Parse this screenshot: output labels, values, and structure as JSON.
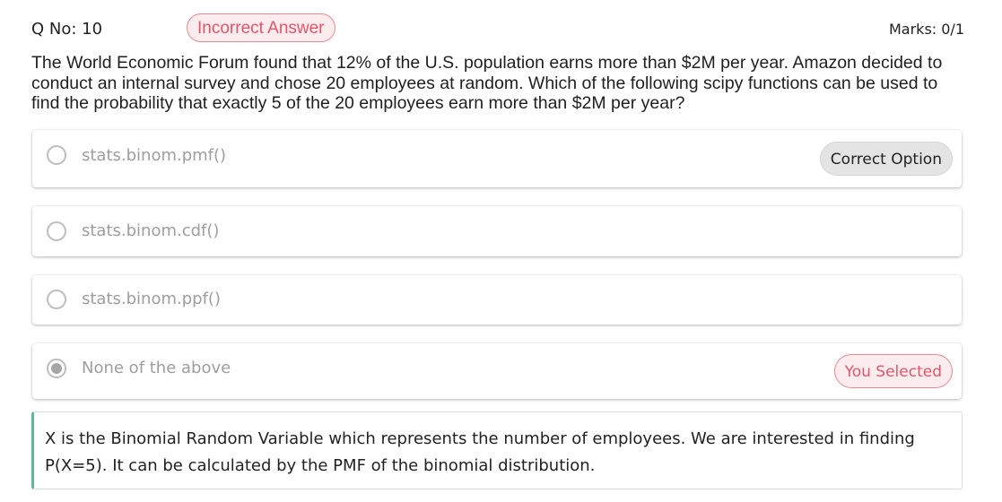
{
  "header": {
    "question_number": "Q No: 10",
    "status_badge": "Incorrect Answer",
    "marks": "Marks: 0/1"
  },
  "question": {
    "text": "The World Economic Forum found that 12% of the U.S. population earns more than $2M per year. Amazon decided to conduct an internal survey and chose 20 employees at random. Which of the following scipy functions can be used to find the probability that exactly 5 of the 20 employees earn more than $2M per year?"
  },
  "options": [
    {
      "label": "stats.binom.pmf()",
      "selected": false,
      "tag": "Correct Option"
    },
    {
      "label": "stats.binom.cdf()",
      "selected": false,
      "tag": ""
    },
    {
      "label": "stats.binom.ppf()",
      "selected": false,
      "tag": ""
    },
    {
      "label": "None of the above",
      "selected": true,
      "tag": "You Selected"
    }
  ],
  "explanation": {
    "text": "X is the Binomial Random Variable which represents the number of employees. We are interested in finding P(X=5). It can be calculated by the PMF of the binomial distribution."
  },
  "colors": {
    "incorrect": "#e0556a",
    "incorrect_bg": "#fdecee",
    "correct_chip_bg": "#e4e4e4",
    "explanation_accent": "#5fb89a"
  }
}
